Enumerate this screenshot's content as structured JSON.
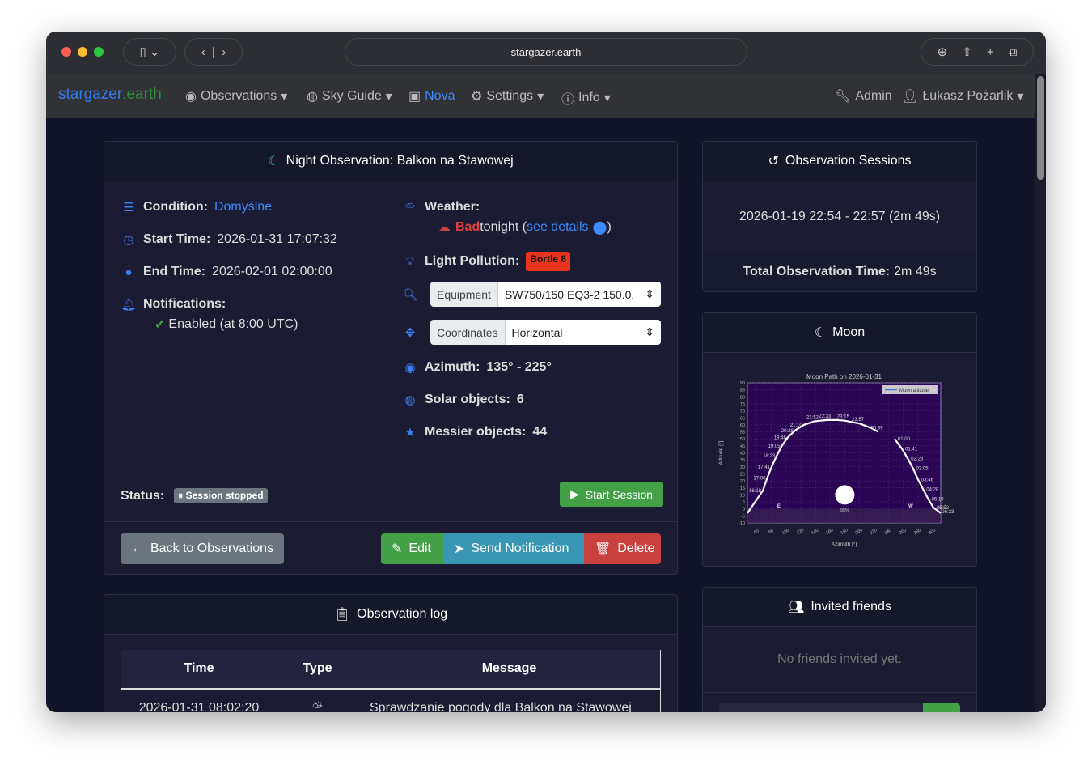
{
  "browser": {
    "url": "stargazer.earth"
  },
  "nav": {
    "brand_a": "stargazer",
    "brand_b": ".earth",
    "items": [
      {
        "label": "Observations",
        "icon": "eye-icon"
      },
      {
        "label": "Sky Guide",
        "icon": "compass-icon"
      },
      {
        "label": "Nova",
        "icon": "robot-icon"
      },
      {
        "label": "Settings",
        "icon": "gears-icon"
      },
      {
        "label": "Info",
        "icon": "info-icon"
      }
    ],
    "admin": "Admin",
    "user": "Łukasz Pożarlik"
  },
  "observation": {
    "title": "Night Observation: Balkon na Stawowej",
    "condition_label": "Condition:",
    "condition": "Domyślne",
    "start_label": "Start Time:",
    "start": "2026-01-31 17:07:32",
    "end_label": "End Time:",
    "end": "2026-02-01 02:00:00",
    "notif_label": "Notifications:",
    "notif": "Enabled (at 8:00 UTC)",
    "weather_label": "Weather:",
    "weather_status": "Bad",
    "weather_rest": " tonight (",
    "weather_link": "see details",
    "weather_close": ")",
    "lp_label": "Light Pollution:",
    "lp_badge": "Bortle 8",
    "equipment_label": "Equipment",
    "equipment": "SW750/150 EQ3-2 150.0,",
    "coords_label": "Coordinates",
    "coords": "Horizontal",
    "azimuth_label": "Azimuth:",
    "azimuth": "135° - 225°",
    "solar_label": "Solar objects:",
    "solar": "6",
    "messier_label": "Messier objects:",
    "messier": "44",
    "status_label": "Status:",
    "status": "Session stopped",
    "start_session": "Start Session",
    "back": "Back to Observations",
    "edit": "Edit",
    "send": "Send Notification",
    "delete": "Delete"
  },
  "sessions": {
    "title": "Observation Sessions",
    "session": "2026-01-19 22:54 - 22:57 (2m 49s)",
    "total_label": "Total Observation Time:",
    "total": "2m 49s"
  },
  "moon": {
    "title": "Moon"
  },
  "friends": {
    "title": "Invited friends",
    "empty": "No friends invited yet."
  },
  "log": {
    "title": "Observation log",
    "columns": [
      "Time",
      "Type",
      "Message"
    ],
    "rows": [
      {
        "time": "2026-01-31 08:02:20",
        "type": "weather-icon",
        "message": "Sprawdzanie pogody dla Balkon na Stawowej"
      }
    ]
  },
  "colors": {
    "accent": "#3d8bfd",
    "success": "#43a047",
    "info": "#3a97b4",
    "danger": "#c9413f",
    "secondary": "#6c757d"
  },
  "chart_data": {
    "type": "line",
    "title": "Moon Path on 2026-01-31",
    "xlabel": "Azimuth [°]",
    "ylabel": "Altitude [°]",
    "xlim": [
      47,
      311
    ],
    "ylim": [
      -10,
      90
    ],
    "xticks": [
      60,
      80,
      100,
      120,
      140,
      160,
      180,
      200,
      220,
      240,
      260,
      280,
      300
    ],
    "yticks": [
      -10,
      -5,
      0,
      5,
      10,
      15,
      20,
      25,
      30,
      35,
      40,
      45,
      50,
      55,
      60,
      65,
      70,
      75,
      80,
      85,
      90
    ],
    "legend": "Moon altitude",
    "legend_position": "top-right",
    "grid": true,
    "segments": [
      [
        [
          47,
          -3
        ],
        [
          68,
          13
        ],
        [
          74,
          22
        ],
        [
          80,
          30
        ],
        [
          87,
          38
        ],
        [
          94,
          45
        ],
        [
          102,
          51
        ],
        [
          112,
          56
        ],
        [
          124,
          60
        ],
        [
          138,
          62.5
        ],
        [
          155,
          63.5
        ],
        [
          170,
          63.5
        ],
        [
          180,
          63
        ],
        [
          200,
          61
        ],
        [
          215,
          58
        ],
        [
          226,
          55
        ]
      ],
      [
        [
          248,
          50
        ],
        [
          258,
          43
        ],
        [
          266,
          36
        ],
        [
          273,
          29
        ],
        [
          280,
          21
        ],
        [
          287,
          14
        ],
        [
          294,
          7
        ],
        [
          301,
          1
        ],
        [
          311,
          -3
        ]
      ]
    ],
    "labels": [
      [
        "16:18",
        68,
        13
      ],
      [
        "17:00",
        74,
        22
      ],
      [
        "17:41",
        80,
        30
      ],
      [
        "18:23",
        87,
        38
      ],
      [
        "19:05",
        94,
        45
      ],
      [
        "19:46",
        102,
        51
      ],
      [
        "20:28",
        112,
        56
      ],
      [
        "21:10",
        124,
        60
      ],
      [
        "21:52",
        138,
        62.5
      ],
      [
        "22:33",
        155,
        63.5
      ],
      [
        "23:15",
        180,
        63
      ],
      [
        "23:57",
        200,
        61
      ],
      [
        "00:39",
        226,
        55
      ],
      [
        "01:00",
        248,
        50
      ],
      [
        "01:41",
        258,
        43
      ],
      [
        "02:23",
        266,
        36
      ],
      [
        "03:05",
        273,
        29
      ],
      [
        "03:46",
        280,
        21
      ],
      [
        "04:28",
        287,
        14
      ],
      [
        "05:10",
        294,
        7
      ],
      [
        "05:52",
        301,
        1
      ],
      [
        "06:33",
        308,
        -2
      ]
    ],
    "directions": [
      [
        "E",
        90
      ],
      [
        "W",
        270
      ]
    ],
    "moon_position": [
      180,
      10
    ],
    "illumination": "95%"
  }
}
